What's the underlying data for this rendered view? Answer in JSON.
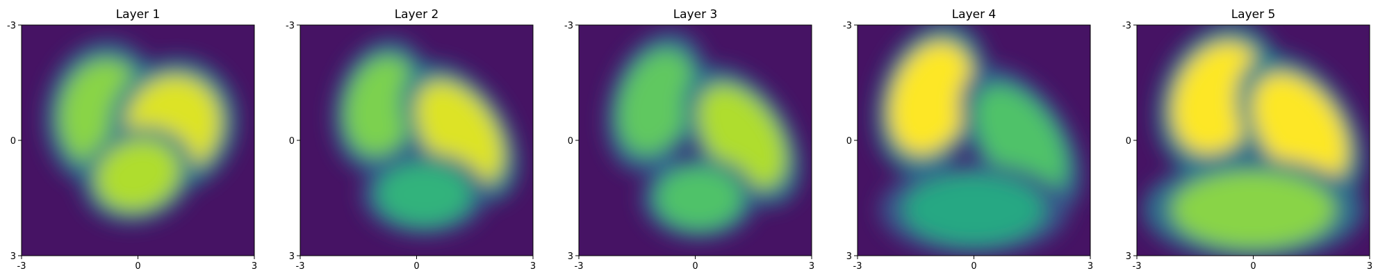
{
  "chart_data": [
    {
      "type": "heatmap",
      "title": "Layer 1",
      "xlim": [
        -3,
        3
      ],
      "ylim": [
        -3,
        3
      ],
      "xticks": [
        "-3",
        "0",
        "3"
      ],
      "yticks": [
        "-3",
        "0",
        "3"
      ],
      "colormap": "viridis",
      "grid": false,
      "blobs": [
        {
          "cx": -0.9,
          "cy": -0.7,
          "rx": 1.1,
          "ry": 1.4,
          "rot": 10,
          "level": 0.82
        },
        {
          "cx": 0.9,
          "cy": -0.4,
          "rx": 1.2,
          "ry": 1.3,
          "rot": 30,
          "level": 0.95
        },
        {
          "cx": 0.0,
          "cy": 0.9,
          "rx": 1.1,
          "ry": 0.9,
          "rot": -20,
          "level": 0.88
        }
      ]
    },
    {
      "type": "heatmap",
      "title": "Layer 2",
      "xlim": [
        -3,
        3
      ],
      "ylim": [
        -3,
        3
      ],
      "xticks": [
        "-3",
        "0",
        "3"
      ],
      "yticks": [
        "-3",
        "0",
        "3"
      ],
      "colormap": "viridis",
      "grid": false,
      "blobs": [
        {
          "cx": -0.9,
          "cy": -0.9,
          "rx": 0.9,
          "ry": 1.3,
          "rot": 15,
          "level": 0.8
        },
        {
          "cx": 1.1,
          "cy": -0.2,
          "rx": 0.9,
          "ry": 1.5,
          "rot": -35,
          "level": 0.95
        },
        {
          "cx": 0.2,
          "cy": 1.4,
          "rx": 1.2,
          "ry": 0.8,
          "rot": 0,
          "level": 0.65
        }
      ]
    },
    {
      "type": "heatmap",
      "title": "Layer 3",
      "xlim": [
        -3,
        3
      ],
      "ylim": [
        -3,
        3
      ],
      "xticks": [
        "-3",
        "0",
        "3"
      ],
      "yticks": [
        "-3",
        "0",
        "3"
      ],
      "colormap": "viridis",
      "grid": false,
      "blobs": [
        {
          "cx": -1.0,
          "cy": -1.0,
          "rx": 0.9,
          "ry": 1.4,
          "rot": 20,
          "level": 0.75
        },
        {
          "cx": 1.2,
          "cy": -0.1,
          "rx": 0.9,
          "ry": 1.5,
          "rot": -35,
          "level": 0.88
        },
        {
          "cx": 0.1,
          "cy": 1.5,
          "rx": 1.1,
          "ry": 0.8,
          "rot": 0,
          "level": 0.72
        }
      ]
    },
    {
      "type": "heatmap",
      "title": "Layer 4",
      "xlim": [
        -3,
        3
      ],
      "ylim": [
        -3,
        3
      ],
      "xticks": [
        "-3",
        "0",
        "3"
      ],
      "yticks": [
        "-3",
        "0",
        "3"
      ],
      "colormap": "viridis",
      "grid": false,
      "blobs": [
        {
          "cx": -1.1,
          "cy": -1.1,
          "rx": 1.0,
          "ry": 1.5,
          "rot": 20,
          "level": 1.0
        },
        {
          "cx": 1.2,
          "cy": 0.0,
          "rx": 0.9,
          "ry": 1.6,
          "rot": -35,
          "level": 0.72
        },
        {
          "cx": 0.0,
          "cy": 1.8,
          "rx": 1.8,
          "ry": 0.9,
          "rot": 0,
          "level": 0.6
        }
      ]
    },
    {
      "type": "heatmap",
      "title": "Layer 5",
      "xlim": [
        -3,
        3
      ],
      "ylim": [
        -3,
        3
      ],
      "xticks": [
        "-3",
        "0",
        "3"
      ],
      "yticks": [
        "-3",
        "0",
        "3"
      ],
      "colormap": "viridis",
      "grid": false,
      "blobs": [
        {
          "cx": -0.9,
          "cy": -1.1,
          "rx": 1.1,
          "ry": 1.5,
          "rot": 25,
          "level": 1.0
        },
        {
          "cx": 1.2,
          "cy": -0.3,
          "rx": 1.0,
          "ry": 1.6,
          "rot": -35,
          "level": 1.0
        },
        {
          "cx": 0.0,
          "cy": 1.8,
          "rx": 2.1,
          "ry": 1.0,
          "rot": 0,
          "level": 0.82
        }
      ]
    }
  ]
}
